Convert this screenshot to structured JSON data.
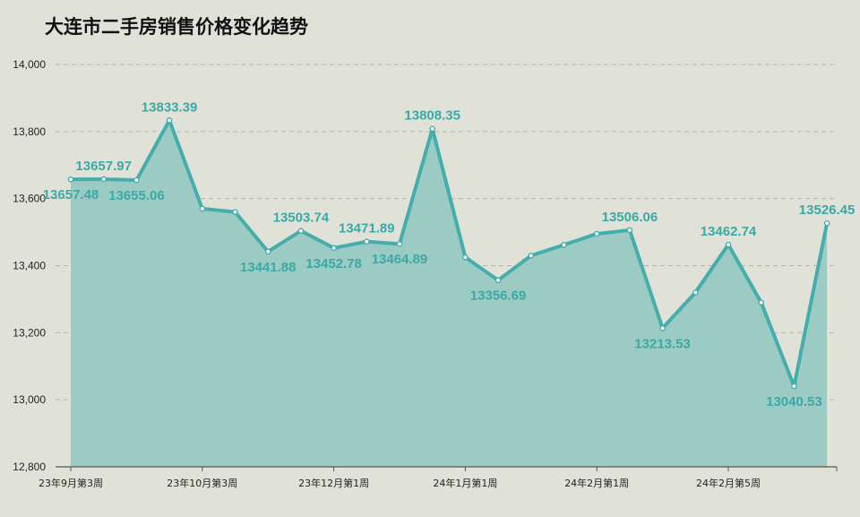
{
  "title": "大连市二手房销售价格变化趋势",
  "colors": {
    "line": "#45aeac",
    "area": "#9ccbc4",
    "label": "#3aa9a6",
    "background": "#e0e2d8",
    "grid": "#b4b6ae"
  },
  "chart_data": {
    "type": "area",
    "title": "大连市二手房销售价格变化趋势",
    "xlabel": "",
    "ylabel": "",
    "ylim": [
      12800,
      14000
    ],
    "yticks": [
      "12,800",
      "13,000",
      "13,200",
      "13,400",
      "13,600",
      "13,800",
      "14,000"
    ],
    "ytick_values": [
      12800,
      13000,
      13200,
      13400,
      13600,
      13800,
      14000
    ],
    "grid": true,
    "legend": "none",
    "xtick_labels": [
      "23年9月第3周",
      "23年10月第3周",
      "23年12月第1周",
      "24年1月第1周",
      "24年2月第1周",
      "24年2月第5周"
    ],
    "xtick_positions": [
      0,
      4,
      8,
      12,
      16,
      20
    ],
    "series": [
      {
        "values": [
          13657.48,
          13657.97,
          13655.06,
          13833.39,
          13570,
          13560,
          13441.88,
          13503.74,
          13452.78,
          13471.89,
          13464.89,
          13808.35,
          13425,
          13356.69,
          13430,
          13462,
          13495,
          13506.06,
          13213.53,
          13320,
          13462.74,
          13290,
          13040.53,
          13526.45
        ],
        "point_labels": [
          "13657.48",
          "13657.97",
          "13655.06",
          "13833.39",
          "",
          "",
          "13441.88",
          "13503.74",
          "13452.78",
          "13471.89",
          "13464.89",
          "13808.35",
          "",
          "13356.69",
          "",
          "",
          "",
          "13506.06",
          "13213.53",
          "",
          "13462.74",
          "",
          "13040.53",
          "13526.45"
        ],
        "label_pos": [
          "below",
          "above",
          "below",
          "above",
          "",
          "",
          "below",
          "above",
          "below",
          "above",
          "below",
          "above",
          "",
          "below",
          "",
          "",
          "",
          "above",
          "below",
          "",
          "above",
          "",
          "below",
          "above"
        ]
      }
    ]
  }
}
